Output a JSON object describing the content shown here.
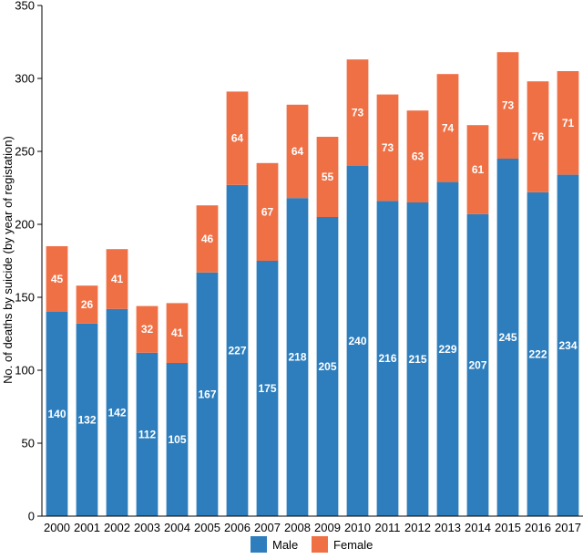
{
  "chart_data": {
    "type": "bar",
    "stacked": true,
    "title": "",
    "xlabel": "",
    "ylabel": "No. of deaths by suicide (by year of registation)",
    "ylim": [
      0,
      350
    ],
    "yticks": [
      0,
      50,
      100,
      150,
      200,
      250,
      300,
      350
    ],
    "grid": false,
    "legend_position": "bottom",
    "categories": [
      "2000",
      "2001",
      "2002",
      "2003",
      "2004",
      "2005",
      "2006",
      "2007",
      "2008",
      "2009",
      "2010",
      "2011",
      "2012",
      "2013",
      "2014",
      "2015",
      "2016",
      "2017"
    ],
    "series": [
      {
        "name": "Male",
        "color": "#2e7ebd",
        "values": [
          140,
          132,
          142,
          112,
          105,
          167,
          227,
          175,
          218,
          205,
          240,
          216,
          215,
          229,
          207,
          245,
          222,
          234
        ]
      },
      {
        "name": "Female",
        "color": "#f07045",
        "values": [
          45,
          26,
          41,
          32,
          41,
          46,
          64,
          67,
          64,
          55,
          73,
          73,
          63,
          74,
          61,
          73,
          76,
          71
        ]
      }
    ]
  }
}
